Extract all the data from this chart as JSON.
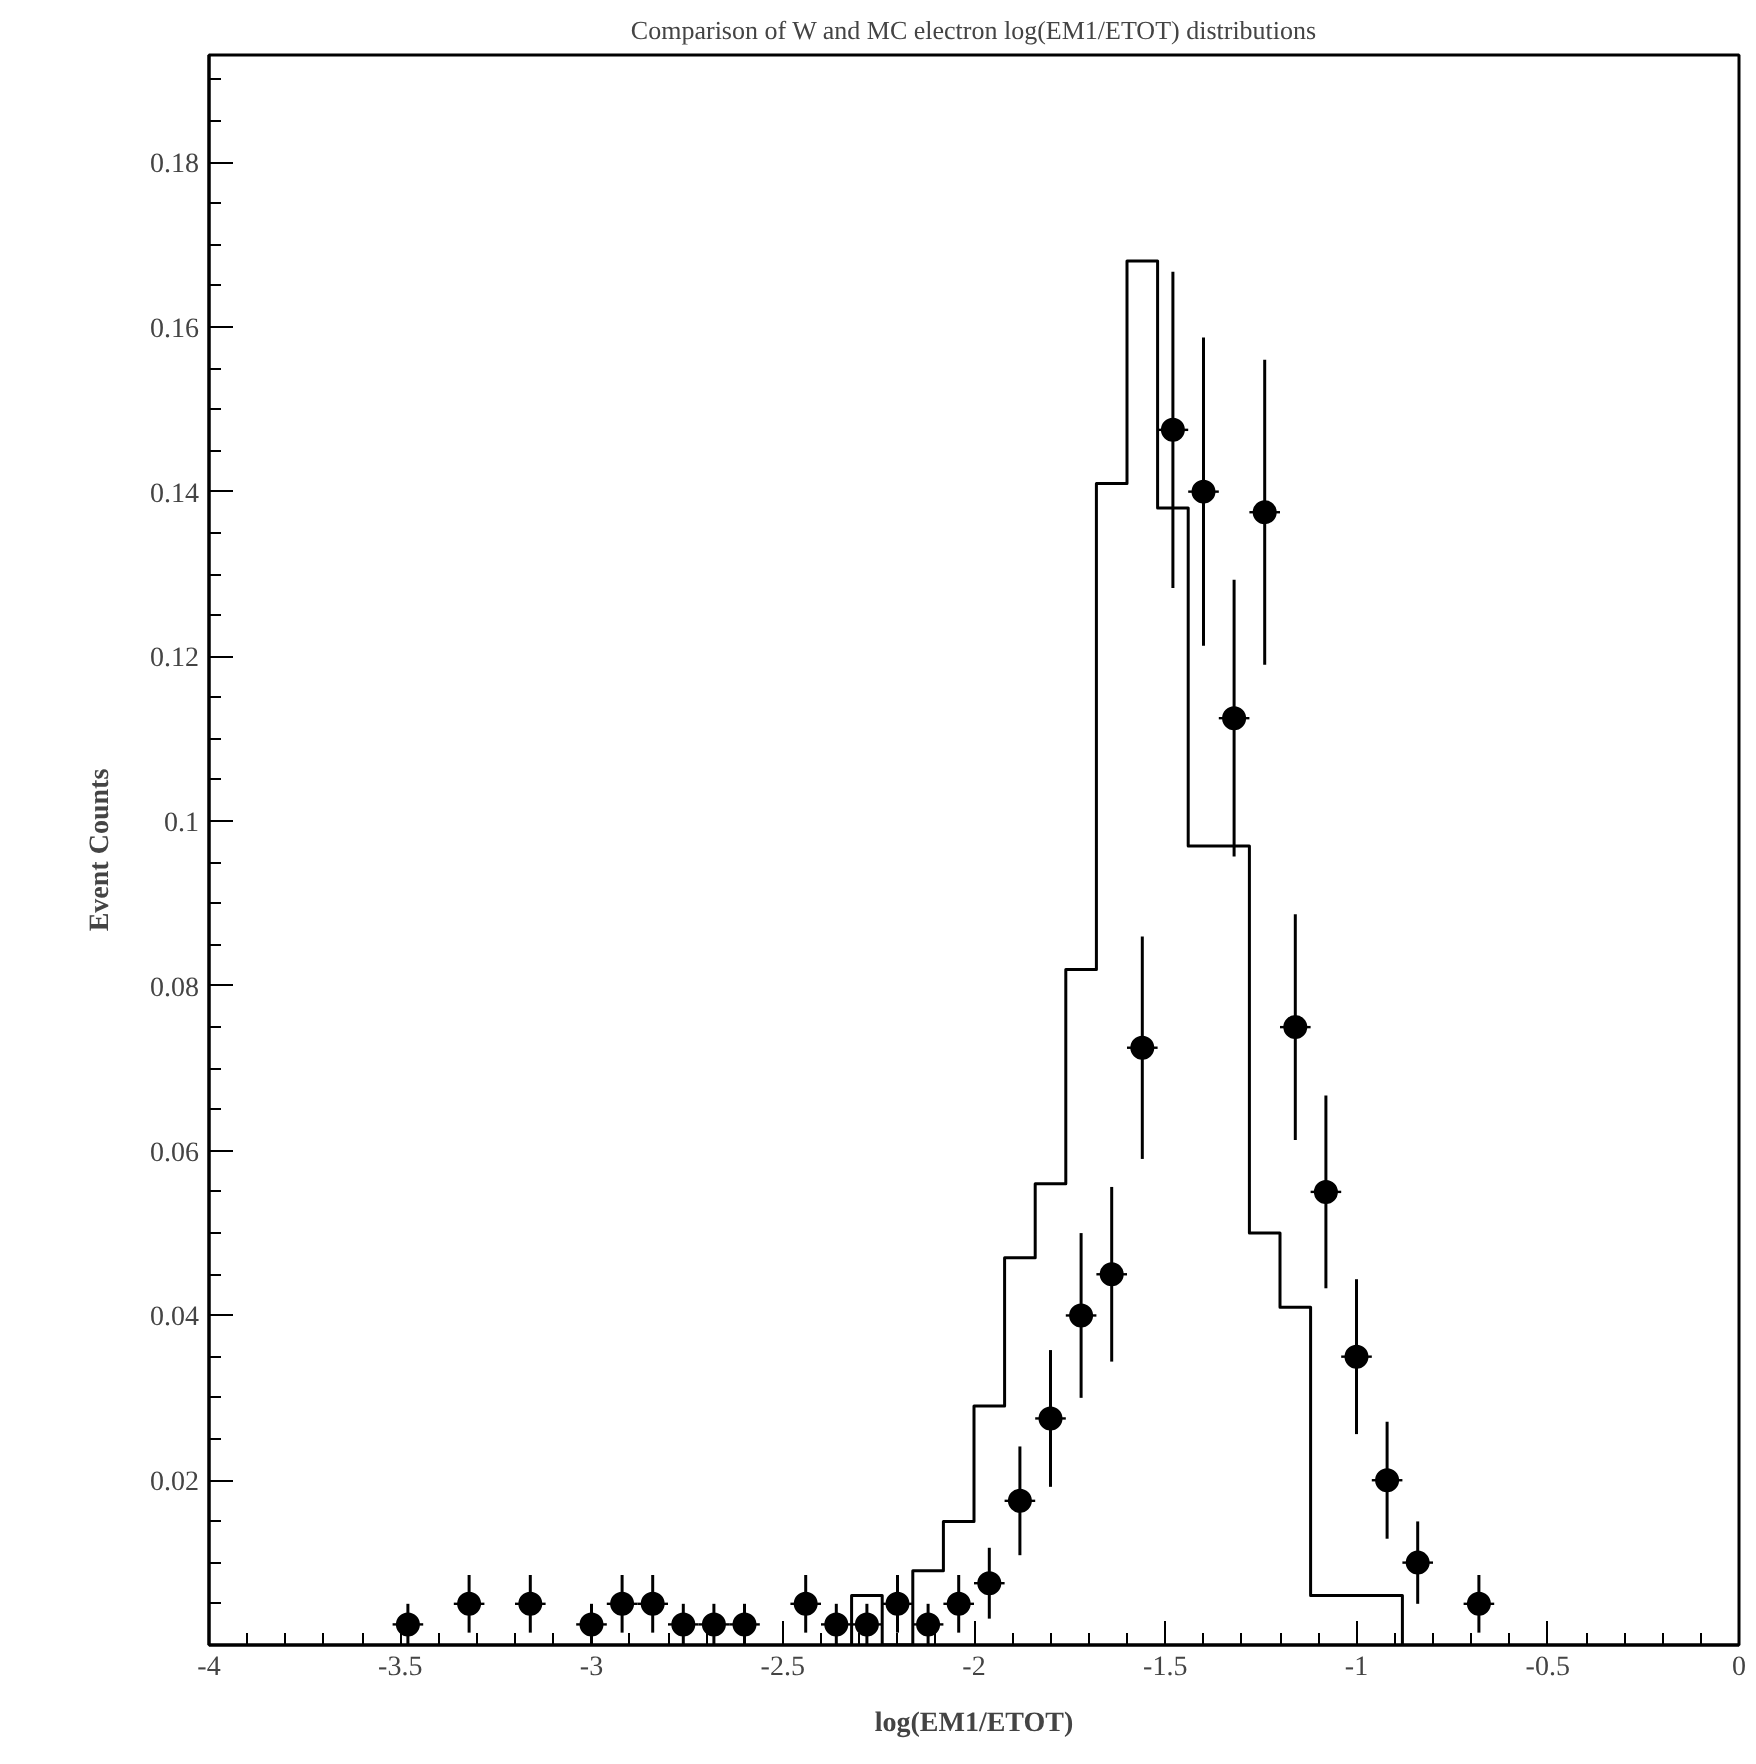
{
  "chart_data": {
    "type": "histogram",
    "title": "Comparison of W and MC electron log(EM1/ETOT) distributions",
    "xlabel": "log(EM1/ETOT)",
    "ylabel": "Event Counts",
    "xlim": [
      -4,
      0
    ],
    "ylim": [
      0,
      0.193
    ],
    "xticks": [
      -4,
      -3.5,
      -3,
      -2.5,
      -2,
      -1.5,
      -1,
      -0.5,
      0
    ],
    "yticks": [
      0.02,
      0.04,
      0.06,
      0.08,
      0.1,
      0.12,
      0.14,
      0.16,
      0.18
    ],
    "grid": false,
    "series": [
      {
        "color": "#000000",
        "bins": [
          -2.32,
          -2.24,
          -2.16,
          -2.08,
          -2.0,
          -1.92,
          -1.84,
          -1.76,
          -1.68,
          -1.6,
          -1.52,
          -1.44,
          -1.36,
          -1.28,
          -1.2,
          -1.12,
          -1.04,
          -0.96,
          -0.88
        ],
        "values": [
          0.006,
          0,
          0.009,
          0.015,
          0.029,
          0.047,
          0.056,
          0.082,
          0.141,
          0.168,
          0.138,
          0.097,
          0.097,
          0.05,
          0.041,
          0.006,
          0.006,
          0.006
        ]
      },
      {
        "type": "scatter",
        "color": "#000000",
        "marker": "circle",
        "x": [
          -3.48,
          -3.32,
          -3.16,
          -3.0,
          -2.92,
          -2.84,
          -2.76,
          -2.68,
          -2.6,
          -2.44,
          -2.36,
          -2.28,
          -2.2,
          -2.12,
          -2.04,
          -1.96,
          -1.88,
          -1.8,
          -1.72,
          -1.64,
          -1.56,
          -1.48,
          -1.4,
          -1.32,
          -1.24,
          -1.16,
          -1.08,
          -1.0,
          -0.92,
          -0.84,
          -0.68
        ],
        "values": [
          0.0025,
          0.005,
          0.005,
          0.0025,
          0.005,
          0.005,
          0.0025,
          0.0025,
          0.0025,
          0.005,
          0.0025,
          0.0025,
          0.005,
          0.0025,
          0.005,
          0.0075,
          0.0175,
          0.0275,
          0.04,
          0.045,
          0.0725,
          0.1475,
          0.14,
          0.1125,
          0.1375,
          0.075,
          0.055,
          0.035,
          0.02,
          0.01,
          0.005
        ],
        "errors": [
          0.0025,
          0.0035,
          0.0035,
          0.0025,
          0.0035,
          0.0035,
          0.0025,
          0.0025,
          0.0025,
          0.0035,
          0.0025,
          0.0025,
          0.0035,
          0.0025,
          0.0035,
          0.0043,
          0.0066,
          0.0083,
          0.01,
          0.0106,
          0.0135,
          0.0192,
          0.0187,
          0.0168,
          0.0185,
          0.0137,
          0.0117,
          0.0094,
          0.0071,
          0.005,
          0.0035
        ],
        "xerrors": [
          0.04,
          0.04,
          0.04,
          0.04,
          0.04,
          0.04,
          0.04,
          0.04,
          0.04,
          0.04,
          0.04,
          0.04,
          0.04,
          0.04,
          0.04,
          0.04,
          0.04,
          0.04,
          0.04,
          0.04,
          0.04,
          0.04,
          0.04,
          0.04,
          0.04,
          0.04,
          0.04,
          0.04,
          0.04,
          0.04,
          0.04
        ]
      }
    ]
  }
}
